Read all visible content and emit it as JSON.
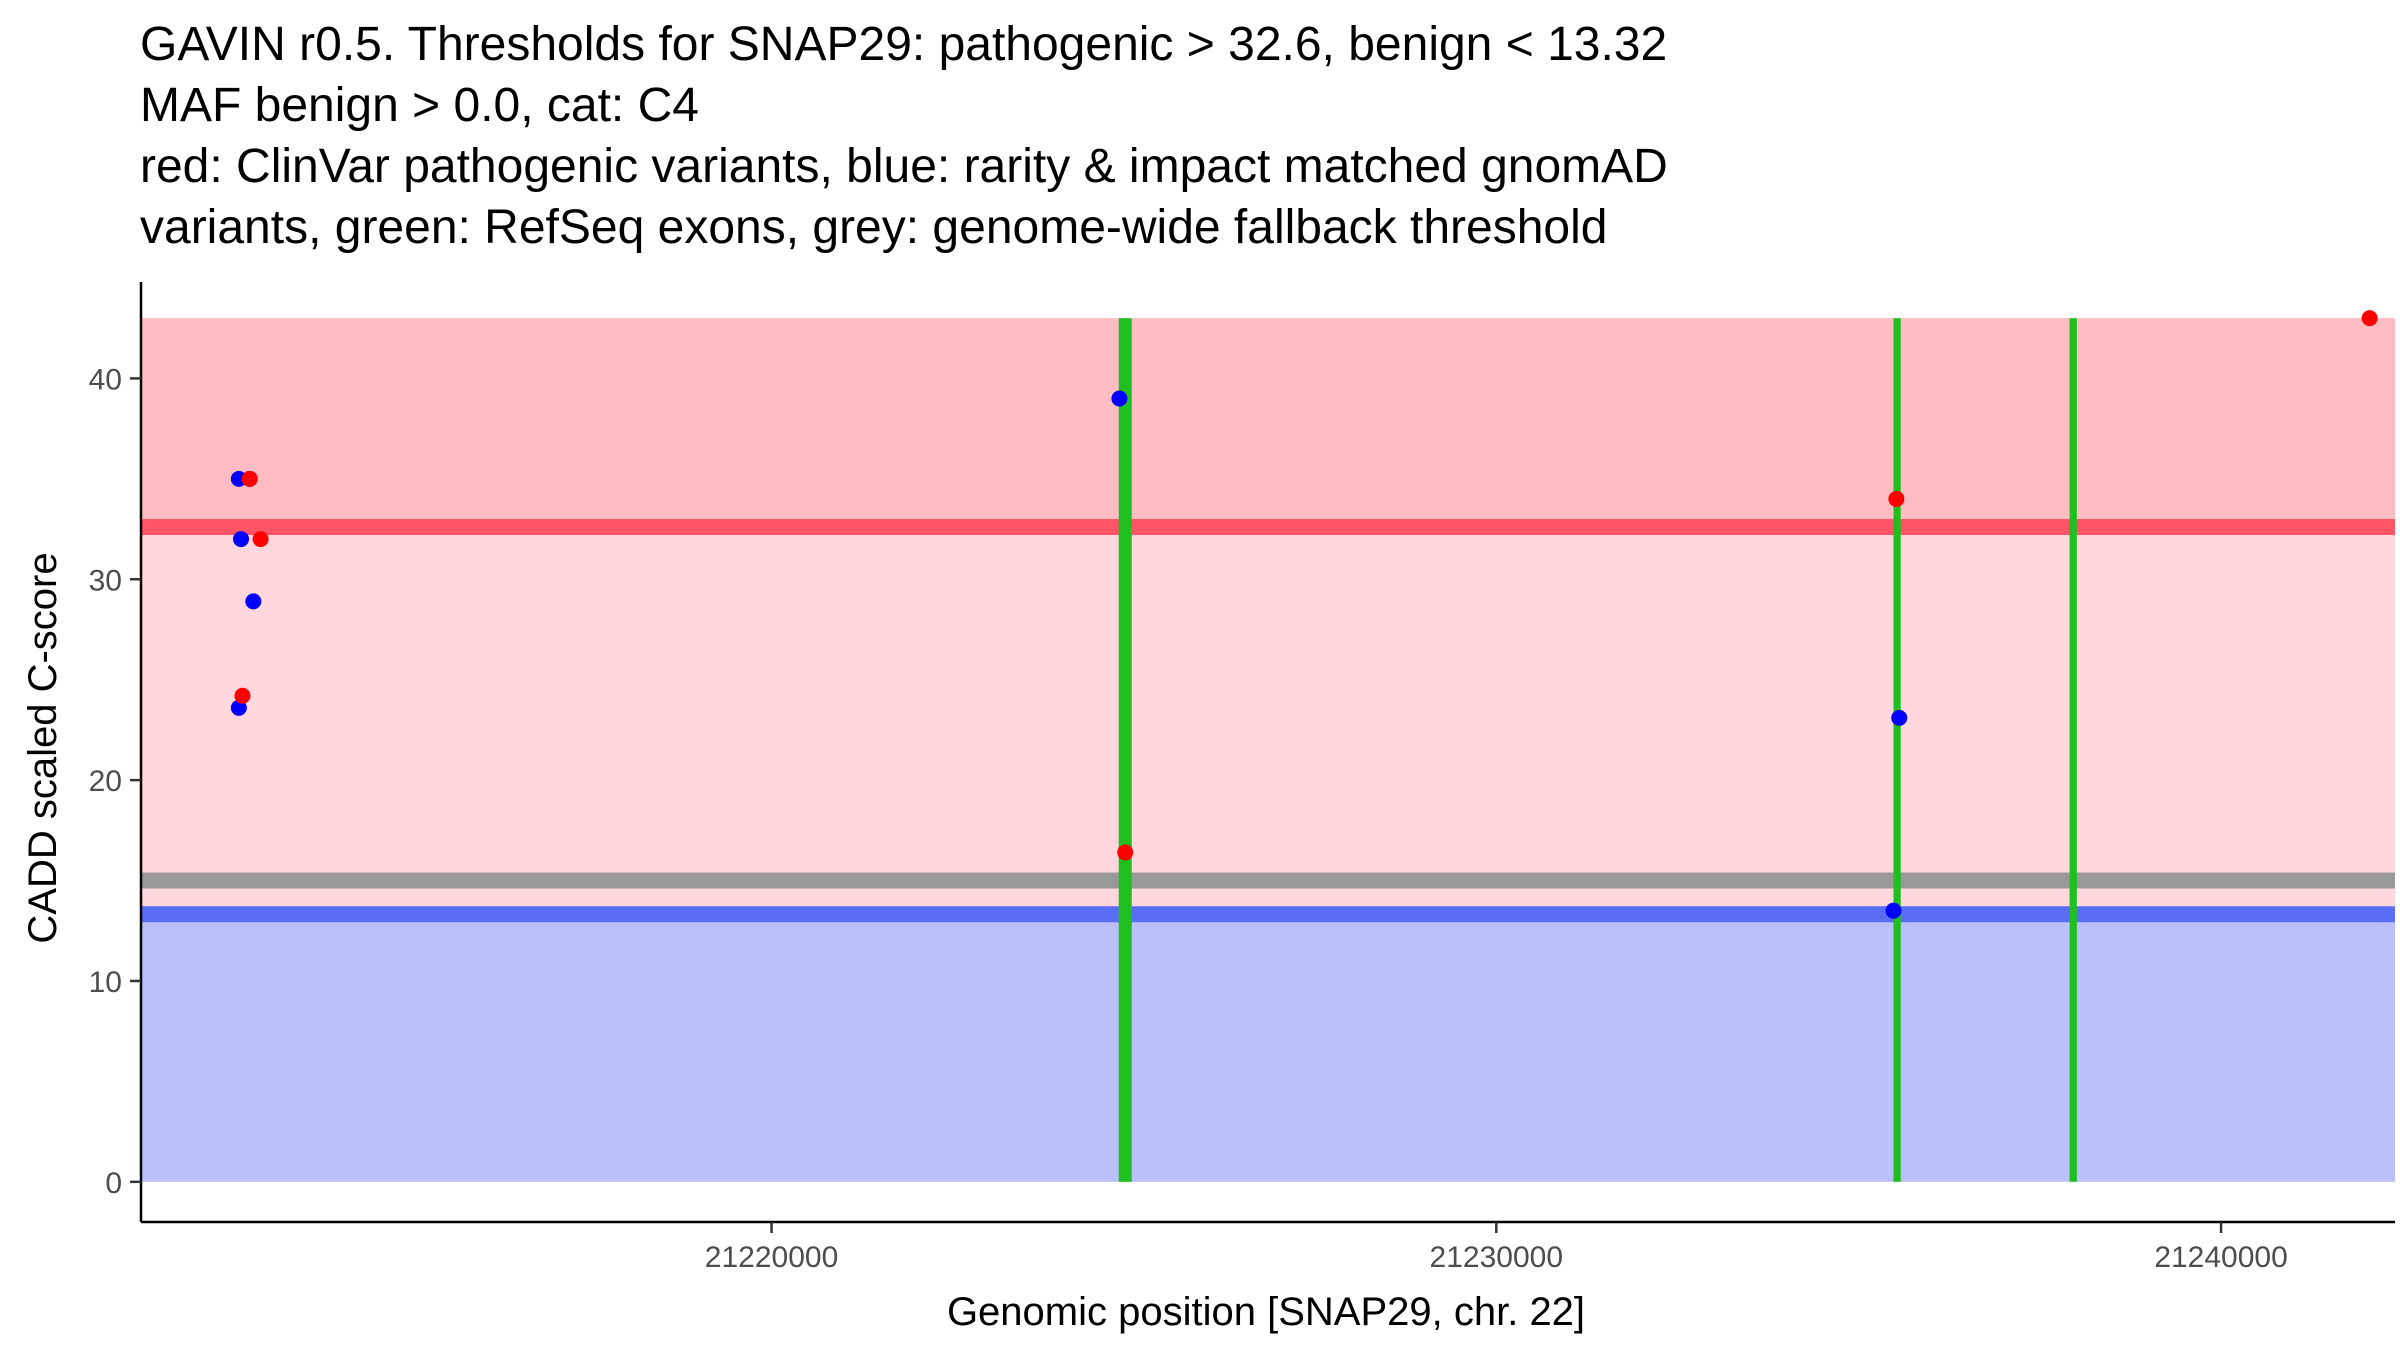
{
  "chart_data": {
    "type": "scatter",
    "title_lines": [
      "GAVIN r0.5. Thresholds for SNAP29: pathogenic > 32.6, benign < 13.32",
      "MAF benign > 0.0, cat: C4",
      "red: ClinVar pathogenic variants, blue: rarity & impact matched gnomAD",
      "variants, green: RefSeq exons, grey: genome-wide fallback threshold"
    ],
    "xlabel": "Genomic position [SNAP29, chr. 22]",
    "ylabel": "CADD scaled C-score",
    "xlim": [
      21211300,
      21242400
    ],
    "ylim": [
      -2.0,
      44.8
    ],
    "x_ticks": [
      21220000,
      21230000,
      21240000
    ],
    "x_tick_labels": [
      "21220000",
      "21230000",
      "21240000"
    ],
    "y_ticks": [
      0,
      10,
      20,
      30,
      40
    ],
    "y_tick_labels": [
      "0",
      "10",
      "20",
      "30",
      "40"
    ],
    "thresholds": {
      "pathogenic": 32.6,
      "benign": 13.32,
      "genome_wide_fallback": 15.0,
      "max_score": 43.0,
      "min_score": 0.0
    },
    "exons": [
      {
        "start": 21224790,
        "end": 21224970
      },
      {
        "start": 21235480,
        "end": 21235580
      },
      {
        "start": 21237910,
        "end": 21238010
      }
    ],
    "series": [
      {
        "name": "ClinVar pathogenic",
        "color": "#ff0000",
        "points": [
          {
            "x": 21212800,
            "y": 35.0
          },
          {
            "x": 21212950,
            "y": 32.0
          },
          {
            "x": 21212700,
            "y": 24.2
          },
          {
            "x": 21224880,
            "y": 16.4
          },
          {
            "x": 21235520,
            "y": 34.0
          },
          {
            "x": 21242050,
            "y": 43.0
          }
        ]
      },
      {
        "name": "gnomAD matched",
        "color": "#0000ff",
        "points": [
          {
            "x": 21212650,
            "y": 35.0
          },
          {
            "x": 21212800,
            "y": 35.0
          },
          {
            "x": 21212680,
            "y": 32.0
          },
          {
            "x": 21212850,
            "y": 28.9
          },
          {
            "x": 21212650,
            "y": 23.6
          },
          {
            "x": 21224800,
            "y": 39.0
          },
          {
            "x": 21235560,
            "y": 23.1
          },
          {
            "x": 21235480,
            "y": 13.5
          }
        ]
      }
    ],
    "colors": {
      "pathogenic_zone": "#ffbcc2",
      "intermediate_zone": "#ffd7dc",
      "benign_zone": "#bbbffb",
      "pathogenic_line": "#ff5566",
      "benign_line": "#5a6df5",
      "fallback_line": "#999999",
      "exon": "#1fbf1f"
    }
  }
}
